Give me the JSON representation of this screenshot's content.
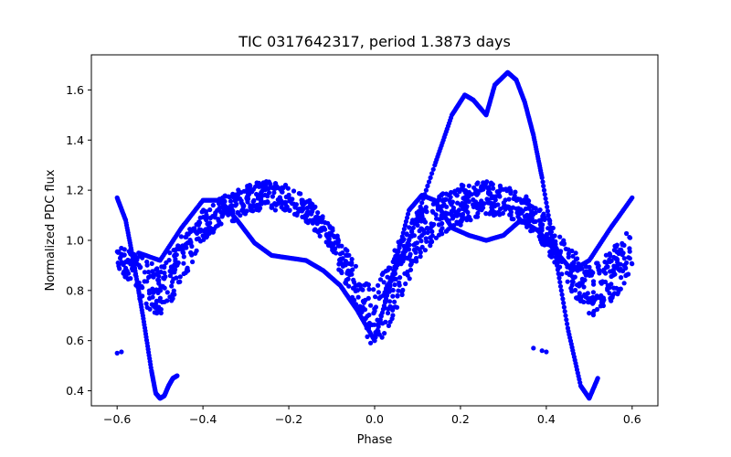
{
  "chart_data": {
    "type": "scatter",
    "title": "TIC 0317642317, period 1.3873 days",
    "xlabel": "Phase",
    "ylabel": "Normalized PDC flux",
    "xlim": [
      -0.66,
      0.66
    ],
    "ylim": [
      0.34,
      1.74
    ],
    "xticks": [
      -0.6,
      -0.4,
      -0.2,
      0.0,
      0.2,
      0.4,
      0.6
    ],
    "xtick_labels": [
      "−0.6",
      "−0.4",
      "−0.2",
      "0.0",
      "0.2",
      "0.4",
      "0.6"
    ],
    "yticks": [
      0.4,
      0.6,
      0.8,
      1.0,
      1.2,
      1.4,
      1.6
    ],
    "ytick_labels": [
      "0.4",
      "0.6",
      "0.8",
      "1.0",
      "1.2",
      "1.4",
      "1.6"
    ],
    "grid": false,
    "marker_color": "#0000ff",
    "series": [
      {
        "description": "main folded band (upper envelope)",
        "x": [
          -0.6,
          -0.55,
          -0.5,
          -0.45,
          -0.4,
          -0.35,
          -0.3,
          -0.25,
          -0.2,
          -0.15,
          -0.1,
          -0.05,
          0.0,
          0.05,
          0.1,
          0.15,
          0.2,
          0.25,
          0.3,
          0.35,
          0.4,
          0.45,
          0.5,
          0.55,
          0.6
        ],
        "y": [
          1.02,
          0.94,
          0.9,
          1.02,
          1.12,
          1.18,
          1.22,
          1.24,
          1.22,
          1.16,
          1.06,
          0.92,
          0.8,
          0.98,
          1.12,
          1.18,
          1.22,
          1.24,
          1.22,
          1.18,
          1.1,
          0.98,
          0.9,
          0.96,
          1.06
        ]
      },
      {
        "description": "main folded band (lower envelope)",
        "x": [
          -0.6,
          -0.55,
          -0.5,
          -0.45,
          -0.4,
          -0.35,
          -0.3,
          -0.25,
          -0.2,
          -0.15,
          -0.1,
          -0.05,
          0.0,
          0.05,
          0.1,
          0.15,
          0.2,
          0.25,
          0.3,
          0.35,
          0.4,
          0.45,
          0.5,
          0.55,
          0.6
        ],
        "y": [
          0.9,
          0.76,
          0.69,
          0.82,
          1.0,
          1.06,
          1.1,
          1.12,
          1.12,
          1.06,
          0.94,
          0.76,
          0.54,
          0.72,
          0.92,
          1.02,
          1.06,
          1.1,
          1.1,
          1.06,
          0.96,
          0.82,
          0.69,
          0.74,
          0.88
        ]
      },
      {
        "description": "high-amplitude segment",
        "x": [
          -0.6,
          -0.58,
          -0.56,
          -0.54,
          -0.52,
          -0.51,
          -0.5,
          -0.49,
          -0.48,
          -0.47,
          -0.46
        ],
        "y": [
          1.17,
          1.08,
          0.9,
          0.7,
          0.48,
          0.39,
          0.37,
          0.38,
          0.42,
          0.45,
          0.46
        ]
      },
      {
        "description": "high-amplitude segment",
        "x": [
          0.02,
          0.08,
          0.14,
          0.18,
          0.21,
          0.23,
          0.26,
          0.28,
          0.31,
          0.33,
          0.35,
          0.37,
          0.39,
          0.42,
          0.45,
          0.48,
          0.5,
          0.52
        ],
        "y": [
          0.78,
          1.0,
          1.3,
          1.5,
          1.58,
          1.56,
          1.5,
          1.62,
          1.67,
          1.64,
          1.55,
          1.42,
          1.25,
          0.95,
          0.65,
          0.42,
          0.37,
          0.45
        ]
      },
      {
        "description": "secondary loop",
        "x": [
          -0.55,
          -0.5,
          -0.45,
          -0.4,
          -0.36,
          -0.32,
          -0.28,
          -0.24,
          -0.2,
          -0.16,
          -0.12,
          -0.08,
          -0.04,
          0.0
        ],
        "y": [
          0.95,
          0.92,
          1.05,
          1.16,
          1.16,
          1.08,
          0.99,
          0.94,
          0.93,
          0.92,
          0.88,
          0.82,
          0.72,
          0.6
        ]
      },
      {
        "description": "secondary loop",
        "x": [
          0.0,
          0.04,
          0.08,
          0.11,
          0.14,
          0.18,
          0.22,
          0.26,
          0.3,
          0.34,
          0.38,
          0.42,
          0.46,
          0.5,
          0.55,
          0.6
        ],
        "y": [
          0.6,
          0.85,
          1.12,
          1.18,
          1.16,
          1.05,
          1.02,
          1.0,
          1.02,
          1.08,
          1.04,
          0.96,
          0.88,
          0.92,
          1.05,
          1.17
        ]
      },
      {
        "description": "low isolated points",
        "x": [
          -0.6,
          -0.59,
          0.37,
          0.39,
          0.4
        ],
        "y": [
          0.55,
          0.555,
          0.57,
          0.56,
          0.555
        ]
      }
    ]
  }
}
